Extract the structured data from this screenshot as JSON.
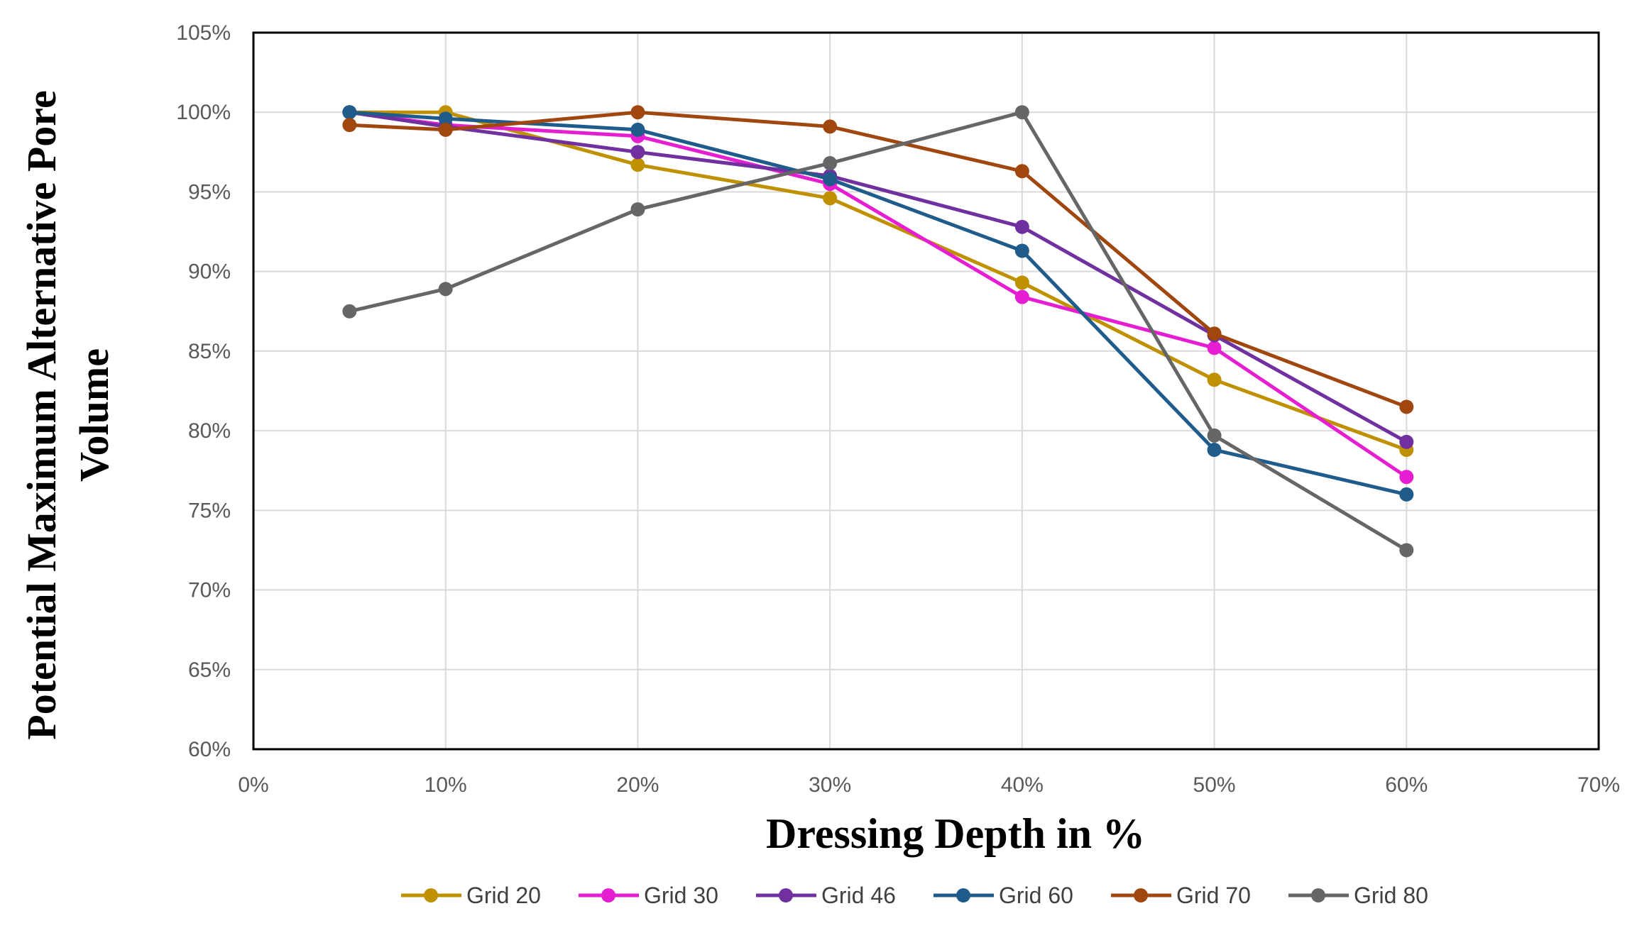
{
  "chart_data": {
    "type": "line",
    "title": "",
    "xlabel": "Dressing Depth in %",
    "ylabel_lines": [
      "Potential Maximum Alternative Pore",
      "Volume"
    ],
    "x": [
      5,
      10,
      20,
      30,
      40,
      50,
      60
    ],
    "xlim": [
      0,
      70
    ],
    "ylim": [
      60,
      105
    ],
    "x_ticks": [
      0,
      10,
      20,
      30,
      40,
      50,
      60,
      70
    ],
    "y_ticks": [
      60,
      65,
      70,
      75,
      80,
      85,
      90,
      95,
      100,
      105
    ],
    "x_tick_labels": [
      "0%",
      "10%",
      "20%",
      "30%",
      "40%",
      "50%",
      "60%",
      "70%"
    ],
    "y_tick_labels": [
      "60%",
      "65%",
      "70%",
      "75%",
      "80%",
      "85%",
      "90%",
      "95%",
      "100%",
      "105%"
    ],
    "grid": true,
    "legend_position": "bottom",
    "series": [
      {
        "name": "Grid 20",
        "color": "#BF9000",
        "values": [
          100.0,
          100.0,
          96.7,
          94.6,
          89.3,
          83.2,
          78.8
        ]
      },
      {
        "name": "Grid 30",
        "color": "#E61ED2",
        "values": [
          100.0,
          99.2,
          98.5,
          95.5,
          88.4,
          85.2,
          77.1
        ]
      },
      {
        "name": "Grid 46",
        "color": "#7030A0",
        "values": [
          100.0,
          99.1,
          97.5,
          96.0,
          92.8,
          86.0,
          79.3
        ]
      },
      {
        "name": "Grid 60",
        "color": "#1F5C8C",
        "values": [
          100.0,
          99.6,
          98.9,
          95.8,
          91.3,
          78.8,
          76.0
        ]
      },
      {
        "name": "Grid 70",
        "color": "#A0460F",
        "values": [
          99.2,
          98.9,
          100.0,
          99.1,
          96.3,
          86.1,
          81.5
        ]
      },
      {
        "name": "Grid 80",
        "color": "#666666",
        "values": [
          87.5,
          88.9,
          93.9,
          96.8,
          100.0,
          79.7,
          72.5
        ]
      }
    ]
  }
}
